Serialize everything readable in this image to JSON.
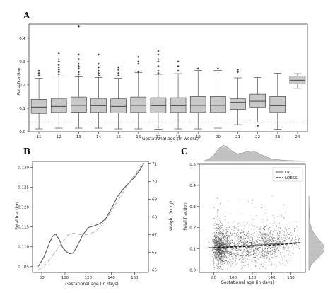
{
  "chart_data": [
    {
      "panel": "A",
      "type": "box",
      "xlabel": "Gestational age (in weeks)",
      "ylabel": "Fetal fraction",
      "ylim": [
        0,
        0.46
      ],
      "yticks": [
        "0.0",
        "0.1",
        "0.2",
        "0.3",
        "0.4"
      ],
      "ytick_values": [
        0,
        0.1,
        0.2,
        0.3,
        0.4
      ],
      "categories": [
        "11",
        "12",
        "13",
        "14",
        "15",
        "16",
        "17",
        "18",
        "19",
        "20",
        "21",
        "22",
        "23",
        "24"
      ],
      "reference_line": 0.05,
      "boxes": [
        {
          "q1": 0.078,
          "median": 0.105,
          "q3": 0.138,
          "wlo": 0.012,
          "whi": 0.228,
          "outliers": [
            0.24,
            0.25,
            0.26
          ]
        },
        {
          "q1": 0.082,
          "median": 0.108,
          "q3": 0.142,
          "wlo": 0.015,
          "whi": 0.238,
          "outliers": [
            0.245,
            0.255,
            0.265,
            0.275,
            0.285,
            0.3,
            0.31,
            0.335
          ]
        },
        {
          "q1": 0.083,
          "median": 0.112,
          "q3": 0.148,
          "wlo": 0.015,
          "whi": 0.235,
          "outliers": [
            0.245,
            0.255,
            0.27,
            0.28,
            0.29,
            0.31,
            0.33,
            0.45
          ]
        },
        {
          "q1": 0.082,
          "median": 0.11,
          "q3": 0.142,
          "wlo": 0.015,
          "whi": 0.232,
          "outliers": [
            0.24,
            0.25,
            0.26,
            0.275,
            0.29,
            0.33
          ]
        },
        {
          "q1": 0.08,
          "median": 0.108,
          "q3": 0.14,
          "wlo": 0.012,
          "whi": 0.228,
          "outliers": [
            0.24,
            0.25,
            0.265,
            0.275
          ]
        },
        {
          "q1": 0.082,
          "median": 0.112,
          "q3": 0.148,
          "wlo": 0.012,
          "whi": 0.252,
          "outliers": [
            0.255,
            0.29,
            0.3,
            0.32
          ]
        },
        {
          "q1": 0.08,
          "median": 0.11,
          "q3": 0.145,
          "wlo": 0.01,
          "whi": 0.245,
          "outliers": [
            0.25,
            0.26,
            0.28,
            0.3,
            0.31,
            0.33,
            0.345
          ]
        },
        {
          "q1": 0.082,
          "median": 0.11,
          "q3": 0.145,
          "wlo": 0.012,
          "whi": 0.248,
          "outliers": [
            0.26,
            0.28,
            0.3
          ]
        },
        {
          "q1": 0.082,
          "median": 0.112,
          "q3": 0.15,
          "wlo": 0.012,
          "whi": 0.262,
          "outliers": [
            0.27
          ]
        },
        {
          "q1": 0.082,
          "median": 0.112,
          "q3": 0.15,
          "wlo": 0.015,
          "whi": 0.262,
          "outliers": [
            0.27
          ]
        },
        {
          "q1": 0.095,
          "median": 0.125,
          "q3": 0.14,
          "wlo": 0.03,
          "whi": 0.23,
          "outliers": [
            0.255,
            0.265
          ]
        },
        {
          "q1": 0.105,
          "median": 0.13,
          "q3": 0.16,
          "wlo": 0.04,
          "whi": 0.232,
          "outliers": [
            0.025
          ]
        },
        {
          "q1": 0.082,
          "median": 0.11,
          "q3": 0.15,
          "wlo": 0.01,
          "whi": 0.25,
          "outliers": []
        },
        {
          "q1": 0.205,
          "median": 0.22,
          "q3": 0.238,
          "wlo": 0.185,
          "whi": 0.248,
          "outliers": []
        }
      ]
    },
    {
      "panel": "B",
      "type": "line",
      "xlabel": "Gestational age (in days)",
      "ylabel": "Fetal fraction",
      "y2label": "Weight (in kg)",
      "xlim": [
        72,
        172
      ],
      "ylim": [
        0.1035,
        0.1315
      ],
      "y2lim": [
        64.85,
        71.15
      ],
      "xticks": [
        "80",
        "100",
        "120",
        "140",
        "160"
      ],
      "xtick_values": [
        80,
        100,
        120,
        140,
        160
      ],
      "yticks": [
        "0.105",
        "0.110",
        "0.115",
        "0.120",
        "0.125",
        "0.130"
      ],
      "ytick_values": [
        0.105,
        0.11,
        0.115,
        0.12,
        0.125,
        0.13
      ],
      "y2ticks": [
        "65",
        "66",
        "67",
        "68",
        "69",
        "70",
        "71"
      ],
      "y2tick_values": [
        65,
        66,
        67,
        68,
        69,
        70,
        71
      ],
      "series": [
        {
          "axis": "left",
          "style": "solid",
          "color": "#555555",
          "x": [
            77,
            82,
            86,
            89,
            92,
            95,
            98,
            101,
            104,
            107,
            110,
            115,
            120,
            125,
            130,
            135,
            140,
            145,
            150,
            155,
            160,
            165,
            168
          ],
          "y": [
            0.105,
            0.1075,
            0.1105,
            0.1125,
            0.1132,
            0.1118,
            0.1098,
            0.1088,
            0.1082,
            0.1084,
            0.1098,
            0.1128,
            0.1148,
            0.1152,
            0.1158,
            0.117,
            0.1195,
            0.1225,
            0.1245,
            0.126,
            0.1275,
            0.1295,
            0.131
          ]
        },
        {
          "axis": "right",
          "style": "dashdot",
          "color": "#aaaaaa",
          "x": [
            77,
            82,
            87,
            92,
            97,
            102,
            107,
            112,
            117,
            122,
            127,
            132,
            137,
            142,
            147,
            152,
            157,
            162,
            166
          ],
          "y": [
            65.0,
            65.2,
            65.6,
            66.05,
            66.5,
            66.95,
            67.08,
            67.0,
            66.98,
            67.05,
            67.2,
            67.55,
            68.0,
            68.55,
            69.05,
            69.6,
            70.1,
            70.55,
            70.95
          ]
        }
      ]
    },
    {
      "panel": "C",
      "type": "scatter",
      "xlabel": "Gestational age (in days)",
      "ylabel": "Fetal fraction",
      "xlim": [
        65,
        175
      ],
      "ylim": [
        -0.012,
        0.5
      ],
      "xticks": [
        "80",
        "100",
        "120",
        "140",
        "160"
      ],
      "xtick_values": [
        80,
        100,
        120,
        140,
        160
      ],
      "yticks": [
        "0.0",
        "0.1",
        "0.2",
        "0.3",
        "0.4",
        "0.5"
      ],
      "ytick_values": [
        0,
        0.1,
        0.2,
        0.3,
        0.4,
        0.5
      ],
      "legend": {
        "position": "upper-right",
        "entries": [
          "LR",
          "LOESS"
        ]
      },
      "lr": {
        "x": [
          70,
          170
        ],
        "y": [
          0.103,
          0.13
        ]
      },
      "loess": {
        "x": [
          75,
          85,
          95,
          105,
          115,
          125,
          135,
          145,
          155,
          165,
          170
        ],
        "y": [
          0.104,
          0.106,
          0.108,
          0.109,
          0.111,
          0.113,
          0.116,
          0.119,
          0.122,
          0.126,
          0.128
        ]
      },
      "x_density": {
        "x": [
          70,
          75,
          80,
          85,
          90,
          95,
          100,
          105,
          110,
          115,
          120,
          125,
          130,
          135,
          140,
          145,
          150,
          155,
          160,
          165,
          170,
          175
        ],
        "d": [
          0.04,
          0.12,
          0.35,
          0.75,
          0.95,
          0.8,
          0.55,
          0.45,
          0.5,
          0.58,
          0.6,
          0.52,
          0.38,
          0.25,
          0.16,
          0.11,
          0.08,
          0.06,
          0.05,
          0.035,
          0.02,
          0.01
        ]
      },
      "y_density": {
        "y": [
          0.0,
          0.02,
          0.04,
          0.06,
          0.08,
          0.1,
          0.12,
          0.14,
          0.16,
          0.18,
          0.2,
          0.22,
          0.25,
          0.3,
          0.35
        ],
        "d": [
          0.03,
          0.12,
          0.32,
          0.62,
          0.88,
          1.0,
          0.9,
          0.68,
          0.45,
          0.27,
          0.15,
          0.08,
          0.04,
          0.015,
          0.005
        ]
      },
      "points_count": 2600
    }
  ]
}
